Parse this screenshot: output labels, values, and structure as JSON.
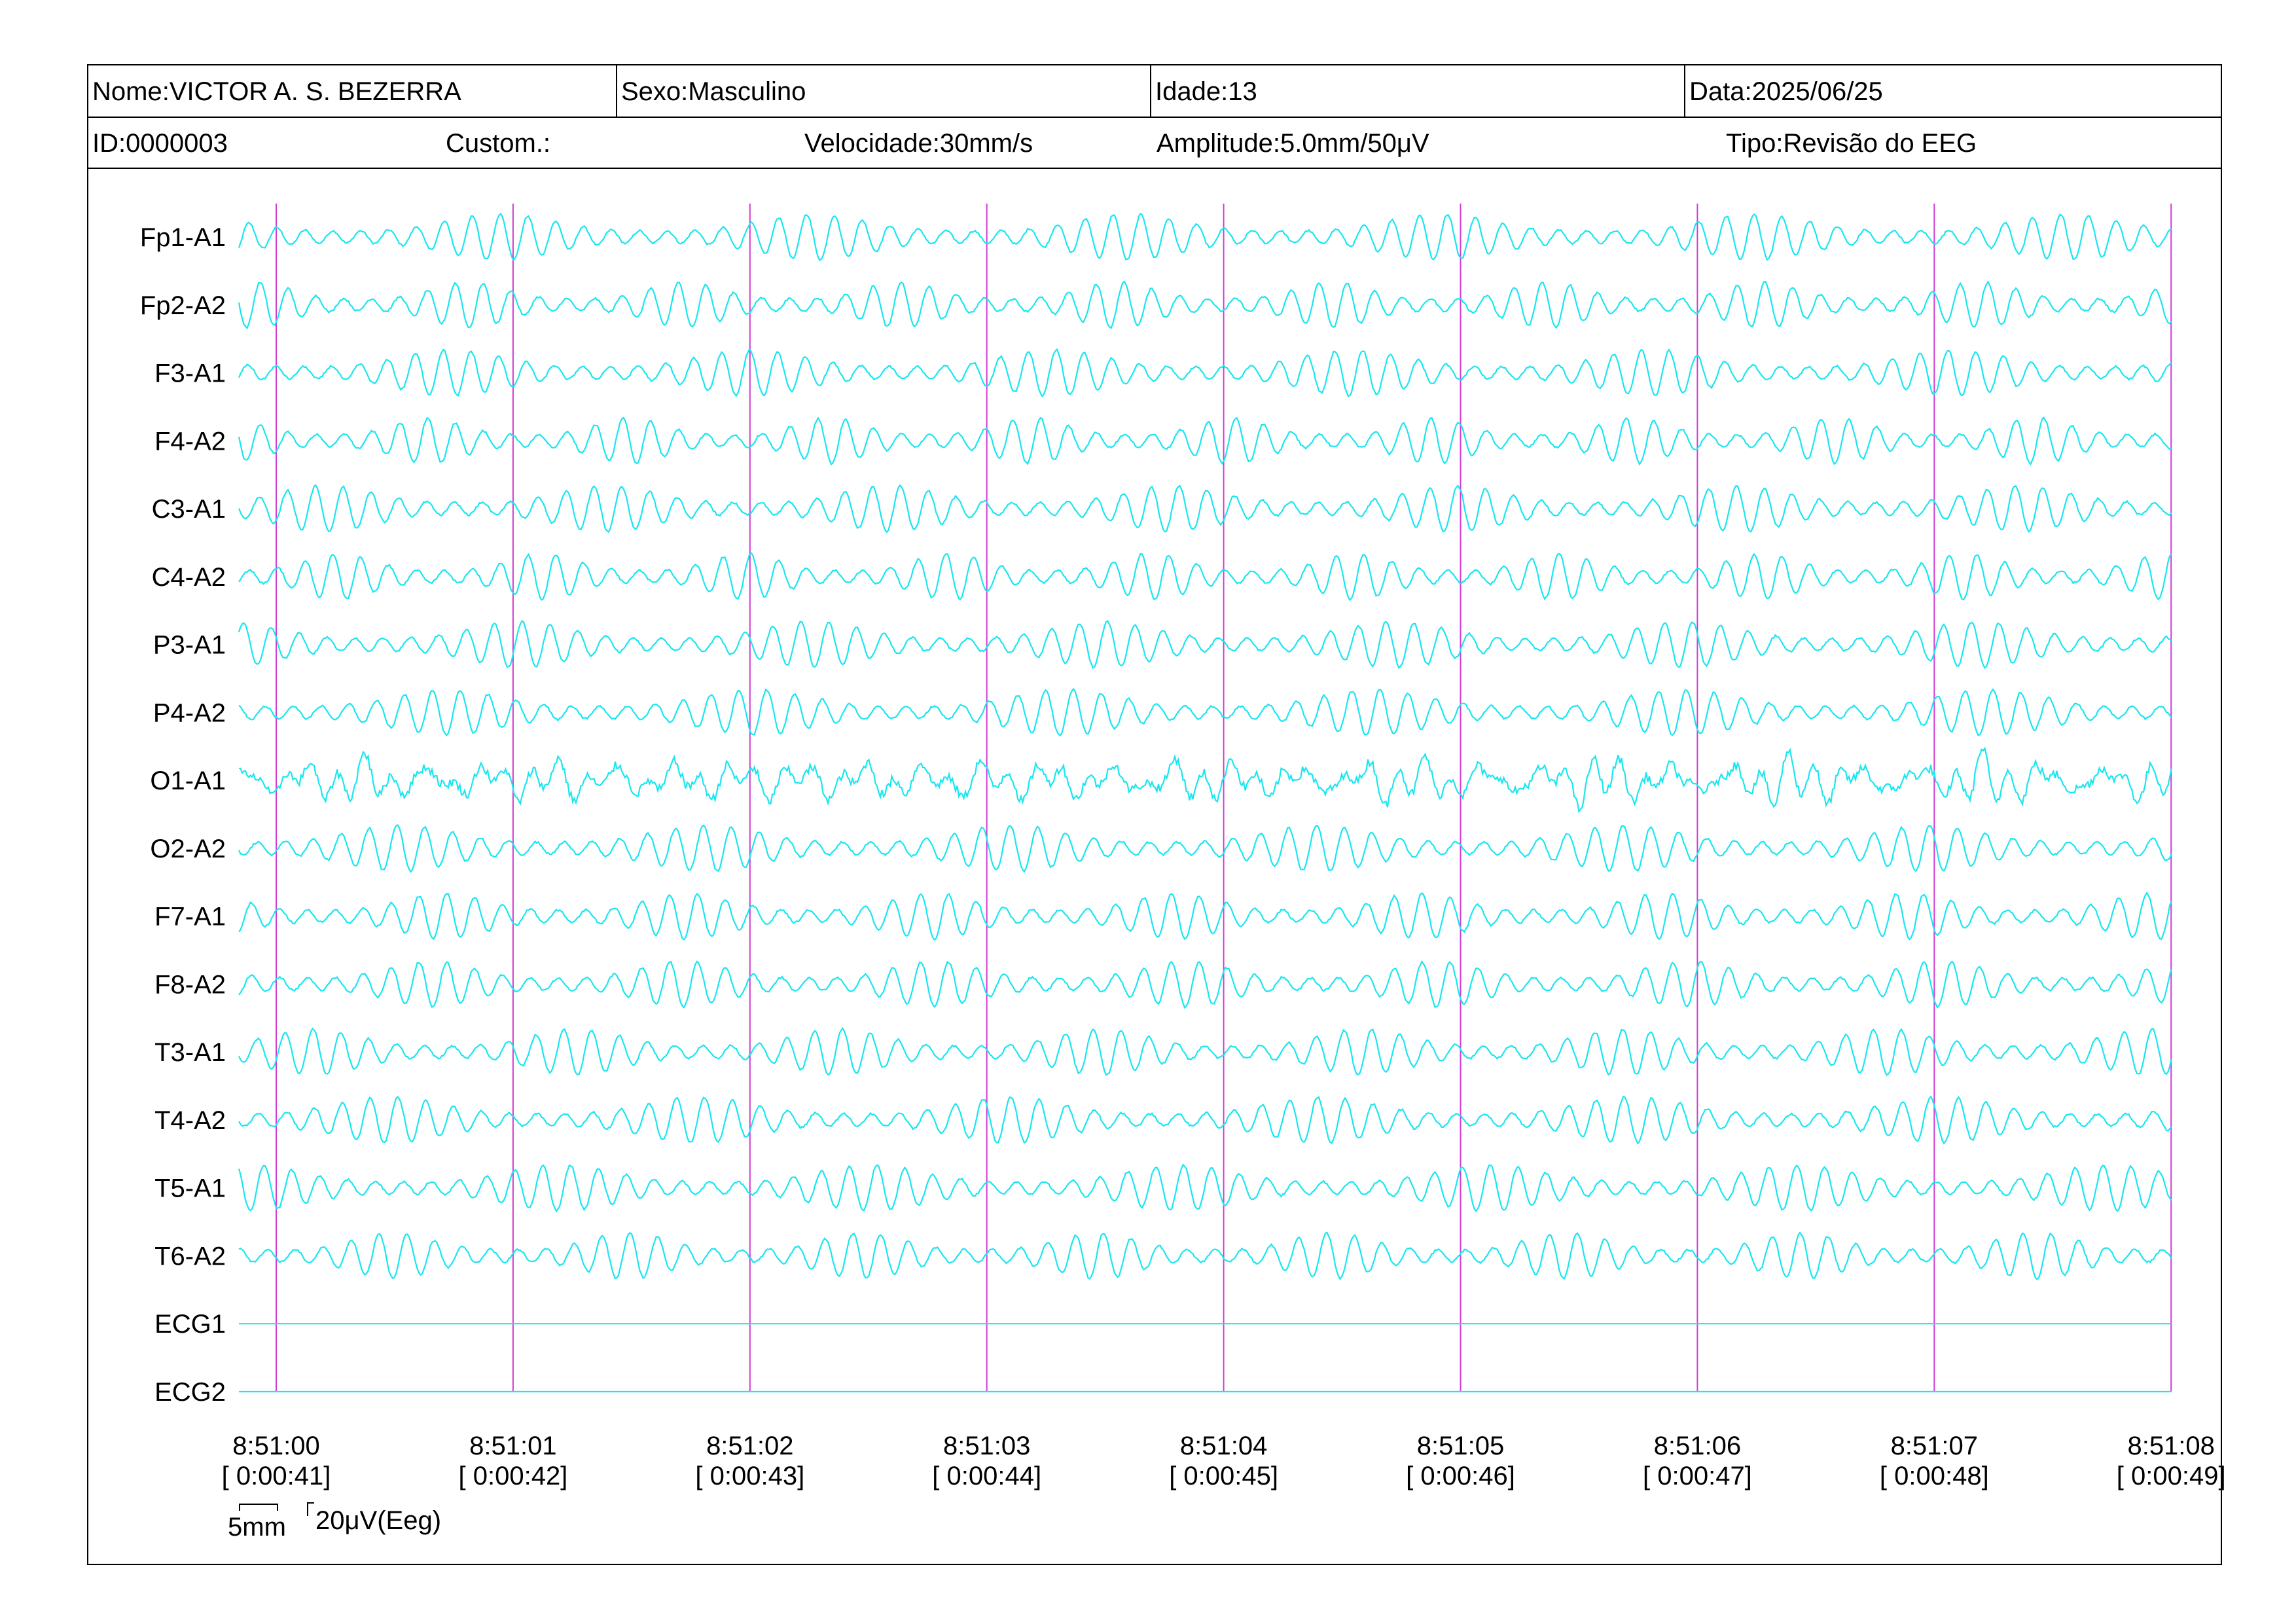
{
  "header": {
    "nome": "Nome:VICTOR A. S. BEZERRA",
    "sexo": "Sexo:Masculino",
    "idade": "Idade:13",
    "data": "Data:2025/06/25",
    "id": "ID:0000003",
    "custom": "Custom.:",
    "velocidade": "Velocidade:30mm/s",
    "amplitude": "Amplitude:5.0mm/50μV",
    "tipo": "Tipo:Revisão do EEG"
  },
  "scale": {
    "time_label": "5mm",
    "amp_label": "20μV(Eeg)"
  },
  "colors": {
    "trace": "#19e6f0",
    "second_marker": "#d23cd2",
    "text": "#000000"
  },
  "chart_data": {
    "type": "line",
    "title": "",
    "xlabel": "",
    "ylabel": "",
    "x_ticks": [
      {
        "time": "8:51:00",
        "elapsed": "[ 0:00:41]"
      },
      {
        "time": "8:51:01",
        "elapsed": "[ 0:00:42]"
      },
      {
        "time": "8:51:02",
        "elapsed": "[ 0:00:43]"
      },
      {
        "time": "8:51:03",
        "elapsed": "[ 0:00:44]"
      },
      {
        "time": "8:51:04",
        "elapsed": "[ 0:00:45]"
      },
      {
        "time": "8:51:05",
        "elapsed": "[ 0:00:46]"
      },
      {
        "time": "8:51:06",
        "elapsed": "[ 0:00:47]"
      },
      {
        "time": "8:51:07",
        "elapsed": "[ 0:00:48]"
      },
      {
        "time": "8:51:08",
        "elapsed": "[ 0:00:49]"
      }
    ],
    "channels": [
      "Fp1-A1",
      "Fp2-A2",
      "F3-A1",
      "F4-A2",
      "C3-A1",
      "C4-A2",
      "P3-A1",
      "P4-A2",
      "O1-A1",
      "O2-A2",
      "F7-A1",
      "F8-A2",
      "T3-A1",
      "T4-A2",
      "T5-A1",
      "T6-A2",
      "ECG1",
      "ECG2"
    ],
    "flat_channels": [
      "ECG1",
      "ECG2"
    ],
    "dominant_frequency_hz": 8.5,
    "grid": false
  }
}
